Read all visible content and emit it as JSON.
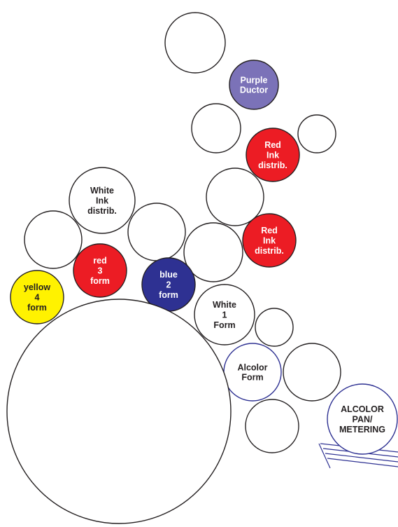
{
  "diagram": {
    "rollers": [
      {
        "id": "top-roller",
        "lines": []
      },
      {
        "id": "purple-ductor",
        "lines": [
          "Purple",
          "Ductor"
        ],
        "fill": "#7b72b8",
        "text_color": "#ffffff"
      },
      {
        "id": "upper-white-roller",
        "lines": []
      },
      {
        "id": "small-right-roller",
        "lines": []
      },
      {
        "id": "red-ink-distrib-upper",
        "lines": [
          "Red",
          "Ink",
          "distrib."
        ],
        "fill": "#ec1c24",
        "text_color": "#ffffff"
      },
      {
        "id": "middle-white-roller",
        "lines": []
      },
      {
        "id": "white-ink-distrib",
        "lines": [
          "White",
          "Ink",
          "distrib."
        ],
        "fill": "#ffffff",
        "text_color": "#231f20"
      },
      {
        "id": "left-white-roller",
        "lines": []
      },
      {
        "id": "center-white-roller",
        "lines": []
      },
      {
        "id": "right-center-white-roller",
        "lines": []
      },
      {
        "id": "red-ink-distrib-lower",
        "lines": [
          "Red",
          "Ink",
          "distrib."
        ],
        "fill": "#ec1c24",
        "text_color": "#ffffff"
      },
      {
        "id": "red-3-form",
        "lines": [
          "red",
          "3",
          "form"
        ],
        "fill": "#ec1c24",
        "text_color": "#ffffff"
      },
      {
        "id": "blue-2-form",
        "lines": [
          "blue",
          "2",
          "form"
        ],
        "fill": "#2e3192",
        "text_color": "#ffffff"
      },
      {
        "id": "yellow-4-form",
        "lines": [
          "yellow",
          "4",
          "form"
        ],
        "fill": "#fff200",
        "text_color": "#231f20"
      },
      {
        "id": "white-1-form",
        "lines": [
          "White",
          "1",
          "Form"
        ],
        "fill": "#ffffff",
        "text_color": "#231f20"
      },
      {
        "id": "small-lower-roller",
        "lines": []
      },
      {
        "id": "alcolor-form",
        "lines": [
          "Alcolor",
          "Form"
        ],
        "fill": "#ffffff",
        "text_color": "#231f20",
        "stroke": "#2e3192"
      },
      {
        "id": "lower-right-roller",
        "lines": []
      },
      {
        "id": "bottom-roller",
        "lines": []
      },
      {
        "id": "alcolor-pan-metering",
        "lines": [
          "ALCOLOR",
          "PAN/",
          "METERING"
        ],
        "fill": "#ffffff",
        "text_color": "#231f20",
        "stroke": "#2e3192"
      },
      {
        "id": "impression-cylinder",
        "lines": []
      }
    ],
    "pan_line_color": "#2e3192"
  }
}
